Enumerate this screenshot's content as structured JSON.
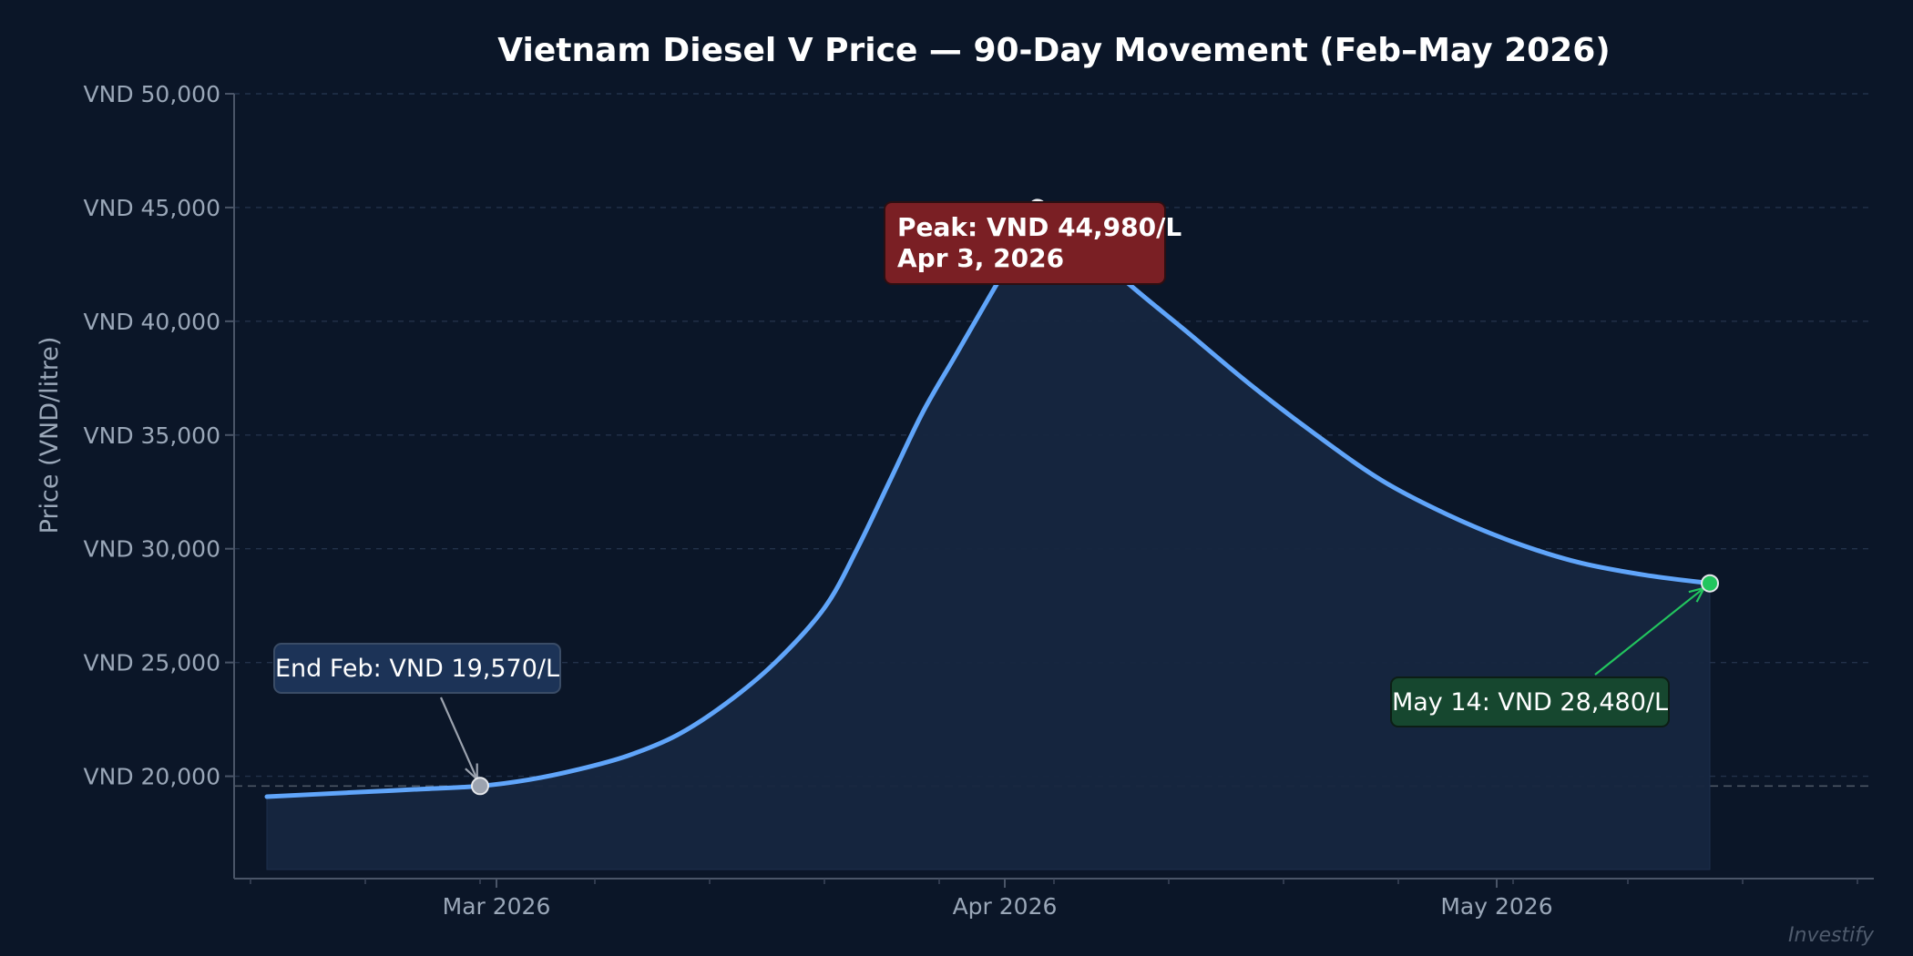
{
  "chart_data": {
    "type": "line",
    "title": "Vietnam Diesel V Price — 90-Day Movement (Feb–May 2026)",
    "xlabel": "",
    "ylabel": "Price (VND/litre)",
    "ylim": [
      15500,
      50000
    ],
    "xlim": [
      "2026-02-13",
      "2026-05-24"
    ],
    "grid": true,
    "x_ticks": [
      {
        "date": "2026-03-01",
        "label": "Mar 2026"
      },
      {
        "date": "2026-04-01",
        "label": "Apr 2026"
      },
      {
        "date": "2026-05-01",
        "label": "May 2026"
      }
    ],
    "y_ticks": [
      {
        "value": 20000,
        "label": "VND 20,000"
      },
      {
        "value": 25000,
        "label": "VND 25,000"
      },
      {
        "value": 30000,
        "label": "VND 30,000"
      },
      {
        "value": 35000,
        "label": "VND 35,000"
      },
      {
        "value": 40000,
        "label": "VND 40,000"
      },
      {
        "value": 45000,
        "label": "VND 45,000"
      },
      {
        "value": 50000,
        "label": "VND 50,000"
      }
    ],
    "reference_line_value": 19570,
    "series": [
      {
        "color": "#60a5fa",
        "fill_color": "#16263f",
        "points": [
          {
            "x": "2026-02-15",
            "y": 19100
          },
          {
            "x": "2026-02-20",
            "y": 19280
          },
          {
            "x": "2026-02-24",
            "y": 19420
          },
          {
            "x": "2026-02-28",
            "y": 19570
          },
          {
            "x": "2026-03-03",
            "y": 19850
          },
          {
            "x": "2026-03-06",
            "y": 20300
          },
          {
            "x": "2026-03-09",
            "y": 20900
          },
          {
            "x": "2026-03-12",
            "y": 21800
          },
          {
            "x": "2026-03-15",
            "y": 23200
          },
          {
            "x": "2026-03-18",
            "y": 25000
          },
          {
            "x": "2026-03-21",
            "y": 27400
          },
          {
            "x": "2026-03-23",
            "y": 30000
          },
          {
            "x": "2026-03-25",
            "y": 33000
          },
          {
            "x": "2026-03-27",
            "y": 36000
          },
          {
            "x": "2026-03-29",
            "y": 38500
          },
          {
            "x": "2026-03-31",
            "y": 41000
          },
          {
            "x": "2026-04-02",
            "y": 43500
          },
          {
            "x": "2026-04-03",
            "y": 44980
          },
          {
            "x": "2026-04-05",
            "y": 44200
          },
          {
            "x": "2026-04-08",
            "y": 42000
          },
          {
            "x": "2026-04-12",
            "y": 39600
          },
          {
            "x": "2026-04-16",
            "y": 37200
          },
          {
            "x": "2026-04-20",
            "y": 35000
          },
          {
            "x": "2026-04-24",
            "y": 33000
          },
          {
            "x": "2026-04-28",
            "y": 31500
          },
          {
            "x": "2026-05-02",
            "y": 30300
          },
          {
            "x": "2026-05-06",
            "y": 29400
          },
          {
            "x": "2026-05-10",
            "y": 28850
          },
          {
            "x": "2026-05-14",
            "y": 28480
          }
        ]
      }
    ],
    "annotations": [
      {
        "date": "2026-02-28",
        "value": 19570,
        "line1": "End Feb: VND 19,570/L",
        "line2": "",
        "bg": "#1c3357",
        "border": "#3a4c66",
        "marker": "#9ca3af",
        "arrow": "#9ca3af",
        "bold": false
      },
      {
        "date": "2026-04-03",
        "value": 44980,
        "line1": "Peak: VND 44,980/L",
        "line2": "Apr 3, 2026",
        "bg": "#7a1f24",
        "border": "#2c0f12",
        "marker": "#ffffff",
        "arrow": "#ffffff",
        "bold": true
      },
      {
        "date": "2026-05-14",
        "value": 28480,
        "line1": "May 14: VND 28,480/L",
        "line2": "",
        "bg": "#16472f",
        "border": "#0c1e15",
        "marker": "#22c55e",
        "arrow": "#22c55e",
        "bold": false
      }
    ]
  },
  "watermark": "Investify"
}
